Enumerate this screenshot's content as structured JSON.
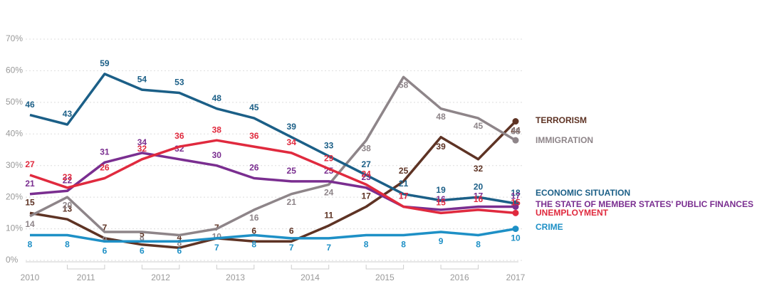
{
  "chart_data": {
    "type": "line",
    "x_labels": [
      "2010",
      "2011",
      "2012",
      "2013",
      "2014",
      "2015",
      "2016",
      "2017"
    ],
    "ylim": [
      0,
      70
    ],
    "yticks": [
      {
        "value": 0,
        "label": "0%"
      },
      {
        "value": 10,
        "label": "10%"
      },
      {
        "value": 20,
        "label": "20%"
      },
      {
        "value": 30,
        "label": "30%"
      },
      {
        "value": 40,
        "label": "40%"
      },
      {
        "value": 50,
        "label": "50%"
      },
      {
        "value": 60,
        "label": "60%"
      },
      {
        "value": 70,
        "label": "70%"
      }
    ],
    "grid": true,
    "series": [
      {
        "name": "TERRORISM",
        "color": "#5e3324",
        "values": [
          15,
          13,
          7,
          5,
          4,
          7,
          6,
          6,
          11,
          17,
          25,
          39,
          32,
          44
        ]
      },
      {
        "name": "IMMIGRATION",
        "color": "#8e8589",
        "values": [
          14,
          20,
          9,
          9,
          8,
          10,
          16,
          21,
          24,
          38,
          58,
          48,
          45,
          38
        ]
      },
      {
        "name": "ECONOMIC SITUATION",
        "color": "#1b5f87",
        "values": [
          46,
          43,
          59,
          54,
          53,
          48,
          45,
          39,
          33,
          27,
          21,
          19,
          20,
          18
        ]
      },
      {
        "name": "THE STATE OF MEMBER STATES' PUBLIC FINANCES",
        "color": "#7a2e90",
        "values": [
          21,
          22,
          31,
          34,
          32,
          30,
          26,
          25,
          25,
          23,
          17,
          16,
          17,
          17
        ]
      },
      {
        "name": "UNEMPLOYMENT",
        "color": "#e02a3e",
        "values": [
          27,
          23,
          26,
          32,
          36,
          38,
          36,
          34,
          29,
          24,
          17,
          15,
          16,
          15
        ]
      },
      {
        "name": "CRIME",
        "color": "#1e90c6",
        "values": [
          8,
          8,
          6,
          6,
          6,
          7,
          8,
          7,
          7,
          8,
          8,
          9,
          8,
          10
        ]
      }
    ]
  }
}
